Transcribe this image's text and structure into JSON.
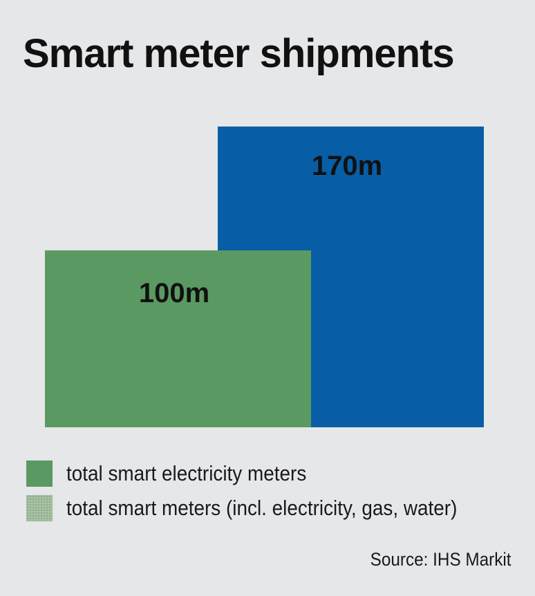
{
  "title": "Smart meter shipments",
  "chart_data": {
    "type": "bar",
    "title": "Smart meter shipments",
    "categories": [
      "total smart electricity meters",
      "total smart meters (incl. electricity, gas, water)"
    ],
    "values": [
      100,
      170
    ],
    "unit": "m",
    "data_labels": [
      "100m",
      "170m"
    ],
    "colors": [
      "#5a9a62",
      "#075ea6"
    ],
    "ylim": [
      0,
      170
    ],
    "grid": false,
    "legend_position": "bottom-left",
    "xlabel": "",
    "ylabel": ""
  },
  "legend": {
    "items": [
      {
        "label": "total smart electricity meters",
        "color": "#5a9a62",
        "pattern": "solid"
      },
      {
        "label": "total smart meters (incl. electricity, gas, water)",
        "color": "#a9c2a4",
        "pattern": "dotted"
      }
    ]
  },
  "source": "Source: IHS Markit"
}
